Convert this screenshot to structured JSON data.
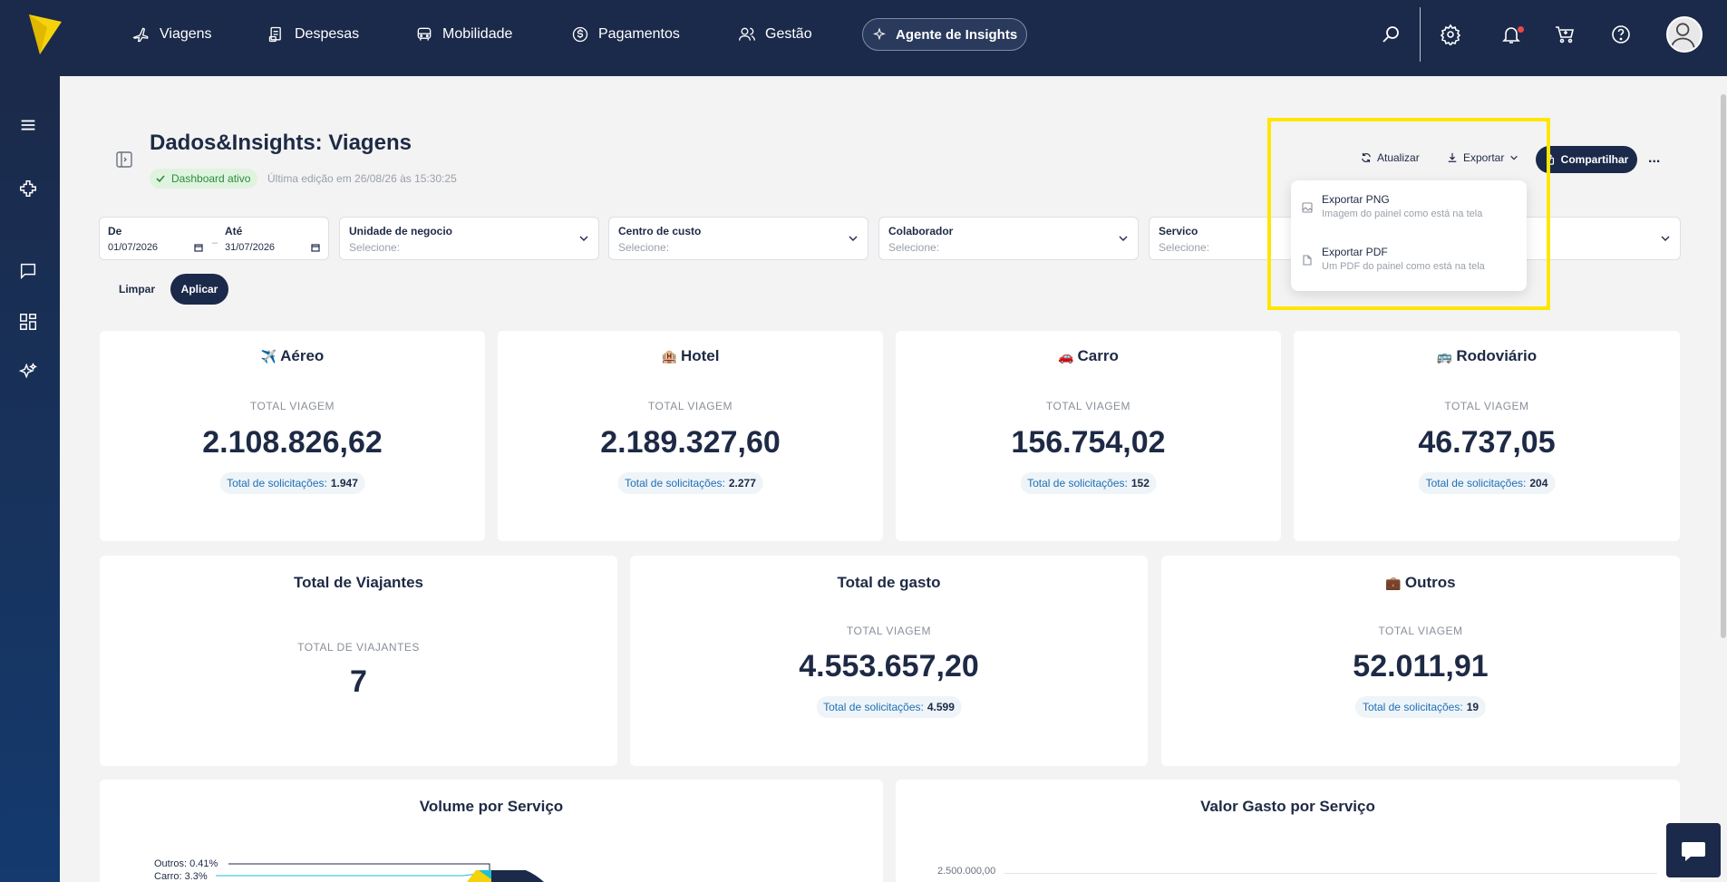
{
  "nav": {
    "items": [
      {
        "label": "Viagens",
        "icon": "plane-icon"
      },
      {
        "label": "Despesas",
        "icon": "receipt-icon"
      },
      {
        "label": "Mobilidade",
        "icon": "car-icon"
      },
      {
        "label": "Pagamentos",
        "icon": "dollar-icon"
      },
      {
        "label": "Gestão",
        "icon": "users-icon"
      }
    ],
    "agent_label": "Agente de Insights"
  },
  "header": {
    "title": "Dados&Insights: Viagens",
    "status": "Dashboard ativo",
    "last_edit": "Última edição em 26/08/26 às 15:30:25",
    "refresh_label": "Atualizar",
    "export_label": "Exportar",
    "share_label": "Compartilhar",
    "more_label": "..."
  },
  "export_menu": {
    "png_title": "Exportar PNG",
    "png_desc": "Imagem do painel como está na tela",
    "pdf_title": "Exportar PDF",
    "pdf_desc": "Um PDF do painel como está na tela"
  },
  "filters": {
    "from_label": "De",
    "from_value": "01/07/2026",
    "to_label": "Até",
    "to_value": "31/07/2026",
    "separator": "–",
    "unit_label": "Unidade de negocio",
    "cost_label": "Centro de custo",
    "collab_label": "Colaborador",
    "service_label": "Servico",
    "placeholder": "Selecione:",
    "clear_label": "Limpar",
    "apply_label": "Aplicar"
  },
  "cards": {
    "aereo": {
      "icon": "✈️",
      "title": "Aéreo",
      "sub": "TOTAL VIAGEM",
      "value": "2.108.826,62",
      "pill_label": "Total de solicitações:",
      "pill_value": "1.947"
    },
    "hotel": {
      "icon": "🏨",
      "title": "Hotel",
      "sub": "TOTAL VIAGEM",
      "value": "2.189.327,60",
      "pill_label": "Total de solicitações:",
      "pill_value": "2.277"
    },
    "carro": {
      "icon": "🚗",
      "title": "Carro",
      "sub": "TOTAL VIAGEM",
      "value": "156.754,02",
      "pill_label": "Total de solicitações:",
      "pill_value": "152"
    },
    "rodoviario": {
      "icon": "🚌",
      "title": "Rodoviário",
      "sub": "TOTAL VIAGEM",
      "value": "46.737,05",
      "pill_label": "Total de solicitações:",
      "pill_value": "204"
    },
    "viajantes": {
      "title": "Total de Viajantes",
      "sub": "TOTAL DE VIAJANTES",
      "value": "7"
    },
    "gasto": {
      "title": "Total de gasto",
      "sub": "TOTAL VIAGEM",
      "value": "4.553.657,20",
      "pill_label": "Total de solicitações:",
      "pill_value": "4.599"
    },
    "outros": {
      "icon": "💼",
      "title": "Outros",
      "sub": "TOTAL VIAGEM",
      "value": "52.011,91",
      "pill_label": "Total de solicitações:",
      "pill_value": "19"
    }
  },
  "charts": {
    "volume_title": "Volume por Serviço",
    "volume_label_outros": "Outros: 0.41%",
    "volume_label_carro": "Carro: 3.3%",
    "valor_title": "Valor Gasto por Serviço",
    "valor_tick_top": "2.500.000,00"
  }
}
